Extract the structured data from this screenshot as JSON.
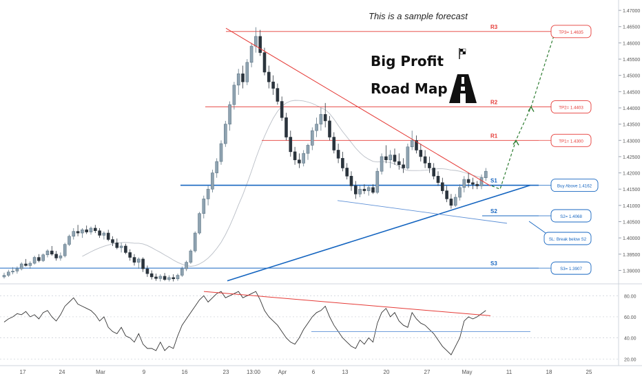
{
  "chart_data": [
    {
      "type": "candlestick",
      "title": "This is a sample forecast",
      "annotation_title_1": "Big Profit",
      "annotation_title_2": "Road Map",
      "ylim": [
        1.3865,
        1.4715
      ],
      "y_ticks": [
        "1.47000",
        "1.46500",
        "1.46000",
        "1.45500",
        "1.45000",
        "1.44500",
        "1.44000",
        "1.43500",
        "1.43000",
        "1.42500",
        "1.42000",
        "1.41500",
        "1.41000",
        "1.40500",
        "1.40000",
        "1.39500",
        "1.39000"
      ],
      "x_ticks": [
        "17",
        "24",
        "Mar",
        "9",
        "16",
        "23",
        "13:00",
        "Apr",
        "6",
        "13",
        "20",
        "27",
        "May",
        "11",
        "18",
        "25"
      ],
      "levels": [
        {
          "name": "R3",
          "value": 1.4635,
          "tag": "TP3= 1.4635",
          "color": "#e53935"
        },
        {
          "name": "R2",
          "value": 1.4403,
          "tag": "TP2= 1.4403",
          "color": "#e53935"
        },
        {
          "name": "R1",
          "value": 1.43,
          "tag": "TP1= 1.4300",
          "color": "#e53935"
        },
        {
          "name": "S1",
          "value": 1.4162,
          "tag": "Buy Above 1.4162",
          "color": "#1565c0"
        },
        {
          "name": "S2",
          "value": 1.4068,
          "tag": "S2= 1.4068",
          "color": "#1565c0"
        },
        {
          "name": "S3",
          "value": 1.3907,
          "tag": "S3= 1.3907",
          "color": "#1565c0"
        }
      ],
      "stop_loss_label": "SL: Break below S2",
      "candles": [
        [
          0,
          1.388,
          1.3893,
          1.3875,
          1.3885
        ],
        [
          1,
          1.3885,
          1.3902,
          1.388,
          1.3895
        ],
        [
          2,
          1.3895,
          1.391,
          1.3888,
          1.3898
        ],
        [
          3,
          1.3898,
          1.3912,
          1.389,
          1.3905
        ],
        [
          4,
          1.3905,
          1.3925,
          1.39,
          1.392
        ],
        [
          5,
          1.392,
          1.3935,
          1.3912,
          1.3915
        ],
        [
          6,
          1.3915,
          1.3928,
          1.3905,
          1.3922
        ],
        [
          7,
          1.3922,
          1.3945,
          1.3918,
          1.394
        ],
        [
          8,
          1.394,
          1.395,
          1.3925,
          1.393
        ],
        [
          9,
          1.393,
          1.3952,
          1.3926,
          1.3948
        ],
        [
          10,
          1.3948,
          1.3965,
          1.394,
          1.396
        ],
        [
          11,
          1.396,
          1.3975,
          1.3945,
          1.395
        ],
        [
          12,
          1.395,
          1.396,
          1.393,
          1.3938
        ],
        [
          13,
          1.3938,
          1.3955,
          1.393,
          1.3945
        ],
        [
          14,
          1.3945,
          1.3985,
          1.394,
          1.398
        ],
        [
          15,
          1.398,
          1.401,
          1.3975,
          1.4005
        ],
        [
          16,
          1.4005,
          1.403,
          1.3995,
          1.402
        ],
        [
          17,
          1.402,
          1.404,
          1.4005,
          1.4015
        ],
        [
          18,
          1.4015,
          1.403,
          1.4,
          1.4025
        ],
        [
          19,
          1.4025,
          1.4038,
          1.4012,
          1.4018
        ],
        [
          20,
          1.4018,
          1.4035,
          1.401,
          1.403
        ],
        [
          21,
          1.403,
          1.404,
          1.4015,
          1.4022
        ],
        [
          22,
          1.4022,
          1.403,
          1.4,
          1.4008
        ],
        [
          23,
          1.4008,
          1.402,
          1.3995,
          1.4015
        ],
        [
          24,
          1.4015,
          1.4025,
          1.399,
          1.3995
        ],
        [
          25,
          1.3995,
          1.4005,
          1.3975,
          1.3985
        ],
        [
          26,
          1.3985,
          1.3998,
          1.3965,
          1.397
        ],
        [
          27,
          1.397,
          1.3985,
          1.3955,
          1.3975
        ],
        [
          28,
          1.3975,
          1.3982,
          1.395,
          1.3955
        ],
        [
          29,
          1.3955,
          1.3965,
          1.393,
          1.394
        ],
        [
          30,
          1.394,
          1.395,
          1.3915,
          1.3925
        ],
        [
          31,
          1.3925,
          1.394,
          1.3905,
          1.3935
        ],
        [
          32,
          1.3935,
          1.394,
          1.3895,
          1.3905
        ],
        [
          33,
          1.3905,
          1.3915,
          1.388,
          1.389
        ],
        [
          34,
          1.389,
          1.39,
          1.3872,
          1.388
        ],
        [
          35,
          1.388,
          1.389,
          1.3868,
          1.3875
        ],
        [
          36,
          1.3875,
          1.3888,
          1.3866,
          1.3882
        ],
        [
          37,
          1.3882,
          1.3892,
          1.3868,
          1.3872
        ],
        [
          38,
          1.3872,
          1.3885,
          1.3866,
          1.3878
        ],
        [
          39,
          1.3878,
          1.3888,
          1.3866,
          1.3874
        ],
        [
          40,
          1.3874,
          1.389,
          1.3868,
          1.3885
        ],
        [
          41,
          1.3885,
          1.3912,
          1.388,
          1.3905
        ],
        [
          42,
          1.3905,
          1.393,
          1.3898,
          1.3925
        ],
        [
          43,
          1.3925,
          1.3965,
          1.392,
          1.396
        ],
        [
          44,
          1.396,
          1.402,
          1.3955,
          1.4015
        ],
        [
          45,
          1.4015,
          1.408,
          1.401,
          1.4075
        ],
        [
          46,
          1.4075,
          1.413,
          1.406,
          1.412
        ],
        [
          47,
          1.412,
          1.416,
          1.41,
          1.415
        ],
        [
          48,
          1.415,
          1.421,
          1.414,
          1.42
        ],
        [
          49,
          1.42,
          1.4245,
          1.4185,
          1.4235
        ],
        [
          50,
          1.4235,
          1.43,
          1.4225,
          1.429
        ],
        [
          51,
          1.429,
          1.436,
          1.428,
          1.435
        ],
        [
          52,
          1.435,
          1.442,
          1.433,
          1.441
        ],
        [
          53,
          1.441,
          1.448,
          1.4395,
          1.447
        ],
        [
          54,
          1.447,
          1.452,
          1.444,
          1.4505
        ],
        [
          55,
          1.4505,
          1.453,
          1.446,
          1.448
        ],
        [
          56,
          1.448,
          1.455,
          1.447,
          1.454
        ],
        [
          57,
          1.454,
          1.46,
          1.4525,
          1.459
        ],
        [
          58,
          1.459,
          1.4648,
          1.457,
          1.462
        ],
        [
          59,
          1.462,
          1.464,
          1.456,
          1.457
        ],
        [
          60,
          1.457,
          1.4585,
          1.45,
          1.451
        ],
        [
          61,
          1.451,
          1.453,
          1.446,
          1.448
        ],
        [
          62,
          1.448,
          1.45,
          1.444,
          1.446
        ],
        [
          63,
          1.446,
          1.4475,
          1.441,
          1.442
        ],
        [
          64,
          1.442,
          1.4435,
          1.436,
          1.437
        ],
        [
          65,
          1.437,
          1.4385,
          1.43,
          1.431
        ],
        [
          66,
          1.431,
          1.433,
          1.425,
          1.4265
        ],
        [
          67,
          1.4265,
          1.428,
          1.4225,
          1.424
        ],
        [
          68,
          1.424,
          1.426,
          1.4215,
          1.423
        ],
        [
          69,
          1.423,
          1.427,
          1.422,
          1.426
        ],
        [
          70,
          1.426,
          1.429,
          1.424,
          1.4285
        ],
        [
          71,
          1.4285,
          1.434,
          1.427,
          1.433
        ],
        [
          72,
          1.433,
          1.437,
          1.431,
          1.435
        ],
        [
          73,
          1.435,
          1.44,
          1.433,
          1.438
        ],
        [
          74,
          1.438,
          1.4415,
          1.434,
          1.436
        ],
        [
          75,
          1.436,
          1.4375,
          1.43,
          1.431
        ],
        [
          76,
          1.431,
          1.4325,
          1.426,
          1.427
        ],
        [
          77,
          1.427,
          1.429,
          1.423,
          1.4245
        ],
        [
          78,
          1.4245,
          1.4265,
          1.4205,
          1.4215
        ],
        [
          79,
          1.4215,
          1.423,
          1.418,
          1.419
        ],
        [
          80,
          1.419,
          1.4205,
          1.4145,
          1.416
        ],
        [
          81,
          1.416,
          1.4175,
          1.412,
          1.4135
        ],
        [
          82,
          1.4135,
          1.416,
          1.4125,
          1.415
        ],
        [
          83,
          1.415,
          1.4165,
          1.4135,
          1.4145
        ],
        [
          84,
          1.4145,
          1.416,
          1.413,
          1.4155
        ],
        [
          85,
          1.4155,
          1.4165,
          1.4135,
          1.414
        ],
        [
          86,
          1.414,
          1.4215,
          1.4135,
          1.4205
        ],
        [
          87,
          1.4205,
          1.426,
          1.4195,
          1.425
        ],
        [
          88,
          1.425,
          1.4285,
          1.423,
          1.424
        ],
        [
          89,
          1.424,
          1.427,
          1.4215,
          1.4255
        ],
        [
          90,
          1.4255,
          1.4275,
          1.4225,
          1.4235
        ],
        [
          91,
          1.4235,
          1.426,
          1.421,
          1.4225
        ],
        [
          92,
          1.4225,
          1.4245,
          1.42,
          1.4215
        ],
        [
          93,
          1.4215,
          1.429,
          1.421,
          1.428
        ],
        [
          94,
          1.428,
          1.433,
          1.427,
          1.43
        ],
        [
          95,
          1.43,
          1.4315,
          1.426,
          1.427
        ],
        [
          96,
          1.427,
          1.429,
          1.4235,
          1.425
        ],
        [
          97,
          1.425,
          1.427,
          1.4215,
          1.423
        ],
        [
          98,
          1.423,
          1.425,
          1.42,
          1.4215
        ],
        [
          99,
          1.4215,
          1.423,
          1.418,
          1.419
        ],
        [
          100,
          1.419,
          1.4205,
          1.416,
          1.417
        ],
        [
          101,
          1.417,
          1.4185,
          1.4135,
          1.4145
        ],
        [
          102,
          1.4145,
          1.416,
          1.411,
          1.412
        ],
        [
          103,
          1.412,
          1.4135,
          1.409,
          1.41
        ],
        [
          104,
          1.41,
          1.4135,
          1.4095,
          1.4125
        ],
        [
          105,
          1.4125,
          1.4165,
          1.4115,
          1.4155
        ],
        [
          106,
          1.4155,
          1.419,
          1.414,
          1.418
        ],
        [
          107,
          1.418,
          1.42,
          1.4155,
          1.417
        ],
        [
          108,
          1.417,
          1.4185,
          1.415,
          1.4165
        ],
        [
          109,
          1.4165,
          1.4175,
          1.415,
          1.416
        ],
        [
          110,
          1.416,
          1.4195,
          1.415,
          1.4185
        ],
        [
          111,
          1.4185,
          1.4215,
          1.4175,
          1.4205
        ]
      ],
      "rsi": {
        "y_ticks": [
          "80.00",
          "60.00",
          "40.00",
          "20.00"
        ],
        "ylim": [
          15,
          88
        ],
        "reference_level": 46,
        "values": [
          55,
          58,
          60,
          63,
          62,
          65,
          60,
          62,
          58,
          64,
          66,
          60,
          56,
          62,
          70,
          74,
          78,
          72,
          70,
          68,
          66,
          62,
          56,
          60,
          50,
          46,
          44,
          50,
          42,
          40,
          36,
          44,
          34,
          30,
          30,
          28,
          36,
          28,
          32,
          30,
          42,
          52,
          58,
          64,
          70,
          76,
          80,
          74,
          78,
          82,
          84,
          78,
          80,
          82,
          84,
          78,
          80,
          82,
          84,
          76,
          66,
          60,
          56,
          52,
          46,
          40,
          36,
          34,
          40,
          48,
          54,
          60,
          64,
          66,
          70,
          60,
          52,
          46,
          40,
          36,
          32,
          30,
          38,
          34,
          40,
          36,
          54,
          64,
          68,
          60,
          64,
          56,
          52,
          50,
          64,
          58,
          54,
          52,
          48,
          44,
          38,
          32,
          28,
          24,
          32,
          40,
          56,
          60,
          58,
          60,
          63,
          66
        ]
      },
      "x_axis_dates": {
        "first_tick_index": 5,
        "tick_spacing": 7.14
      }
    }
  ],
  "colors": {
    "up": "#546e7a",
    "down": "#37474f",
    "resistance": "#e53935",
    "support": "#1565c0",
    "forecast": "#2e7d32",
    "rsi": "#333333"
  }
}
